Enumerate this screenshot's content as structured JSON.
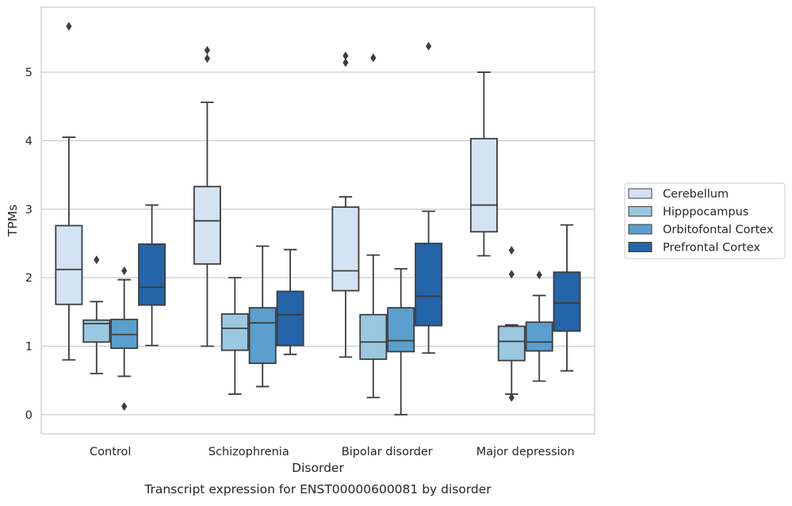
{
  "chart_data": {
    "type": "box",
    "title": "",
    "caption": "Transcript expression for ENST00000600081 by disorder",
    "xlabel": "Disorder",
    "ylabel": "TPMs",
    "ylim": [
      -0.28,
      5.95
    ],
    "yticks": [
      "0",
      "1",
      "2",
      "3",
      "4",
      "5"
    ],
    "grid": "horizontal",
    "legend_position": "right",
    "categories": [
      "Control",
      "Schizophrenia",
      "Bipolar disorder",
      "Major depression"
    ],
    "series": [
      {
        "name": "Cerebellum",
        "color": "#d3e3f3",
        "boxes": [
          {
            "whislo": 0.8,
            "q1": 1.61,
            "med": 2.12,
            "q3": 2.76,
            "whishi": 4.05,
            "fliers": [
              5.67
            ]
          },
          {
            "whislo": 1.0,
            "q1": 2.2,
            "med": 2.83,
            "q3": 3.33,
            "whishi": 4.56,
            "fliers": [
              5.2,
              5.32
            ]
          },
          {
            "whislo": 0.84,
            "q1": 1.81,
            "med": 2.1,
            "q3": 3.03,
            "whishi": 3.18,
            "fliers": [
              5.14,
              5.24
            ]
          },
          {
            "whislo": 2.32,
            "q1": 2.67,
            "med": 3.06,
            "q3": 4.03,
            "whishi": 5.0,
            "fliers": []
          }
        ]
      },
      {
        "name": "Hipppocampus",
        "color": "#9ac8e0",
        "boxes": [
          {
            "whislo": 0.6,
            "q1": 1.06,
            "med": 1.33,
            "q3": 1.38,
            "whishi": 1.65,
            "fliers": [
              2.26
            ]
          },
          {
            "whislo": 0.3,
            "q1": 0.94,
            "med": 1.26,
            "q3": 1.47,
            "whishi": 2.0,
            "fliers": []
          },
          {
            "whislo": 0.25,
            "q1": 0.81,
            "med": 1.06,
            "q3": 1.46,
            "whishi": 2.33,
            "fliers": [
              5.21
            ]
          },
          {
            "whislo": 0.3,
            "q1": 0.79,
            "med": 1.07,
            "q3": 1.29,
            "whishi": 1.31,
            "fliers": [
              0.25,
              2.05,
              2.4
            ]
          }
        ]
      },
      {
        "name": "Orbitofontal Cortex",
        "color": "#5a9fce",
        "boxes": [
          {
            "whislo": 0.56,
            "q1": 0.97,
            "med": 1.17,
            "q3": 1.39,
            "whishi": 1.97,
            "fliers": [
              0.12,
              2.1
            ]
          },
          {
            "whislo": 0.41,
            "q1": 0.75,
            "med": 1.34,
            "q3": 1.56,
            "whishi": 2.46,
            "fliers": []
          },
          {
            "whislo": 0.0,
            "q1": 0.92,
            "med": 1.08,
            "q3": 1.56,
            "whishi": 2.13,
            "fliers": []
          },
          {
            "whislo": 0.49,
            "q1": 0.93,
            "med": 1.06,
            "q3": 1.35,
            "whishi": 1.74,
            "fliers": [
              2.04
            ]
          }
        ]
      },
      {
        "name": "Prefrontal Cortex",
        "color": "#2464a8",
        "boxes": [
          {
            "whislo": 1.01,
            "q1": 1.6,
            "med": 1.86,
            "q3": 2.49,
            "whishi": 3.06,
            "fliers": []
          },
          {
            "whislo": 0.88,
            "q1": 1.01,
            "med": 1.46,
            "q3": 1.8,
            "whishi": 2.41,
            "fliers": []
          },
          {
            "whislo": 0.9,
            "q1": 1.3,
            "med": 1.73,
            "q3": 2.5,
            "whishi": 2.97,
            "fliers": [
              5.38
            ]
          },
          {
            "whislo": 0.64,
            "q1": 1.22,
            "med": 1.63,
            "q3": 2.08,
            "whishi": 2.77,
            "fliers": []
          }
        ]
      }
    ]
  }
}
